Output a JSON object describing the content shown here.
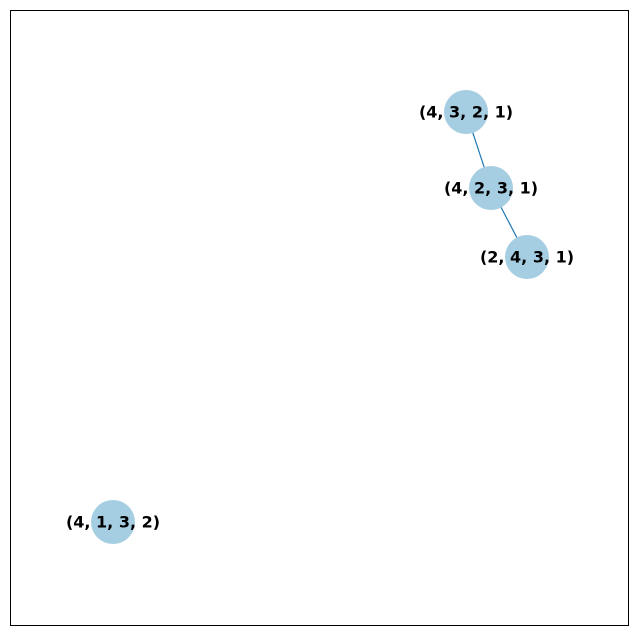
{
  "graph": {
    "node_color": "#a6cee3",
    "edge_color": "#1f77b4",
    "nodes": [
      {
        "id": "n1",
        "label": "(4, 3, 2, 1)"
      },
      {
        "id": "n2",
        "label": "(4, 2, 3, 1)"
      },
      {
        "id": "n3",
        "label": "(2, 4, 3, 1)"
      },
      {
        "id": "n4",
        "label": "(4, 1, 3, 2)"
      }
    ],
    "edges": [
      {
        "source": "n1",
        "target": "n2"
      },
      {
        "source": "n2",
        "target": "n3"
      }
    ]
  }
}
